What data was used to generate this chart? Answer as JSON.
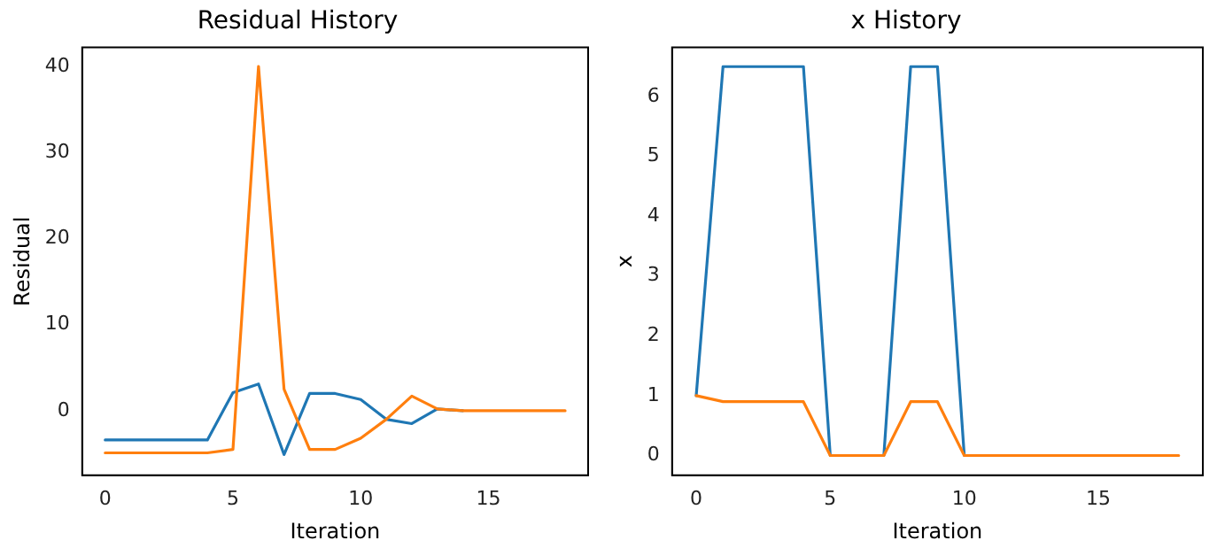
{
  "chart_data": [
    {
      "type": "line",
      "title": "Residual History",
      "xlabel": "Iteration",
      "ylabel": "Residual",
      "x": [
        0,
        1,
        2,
        3,
        4,
        5,
        6,
        7,
        8,
        9,
        10,
        11,
        12,
        13,
        14,
        15,
        16,
        17,
        18
      ],
      "xlim": [
        -0.9,
        18.9
      ],
      "xticks": [
        0,
        5,
        10,
        15
      ],
      "ylim": [
        -7.5,
        42.2
      ],
      "yticks": [
        0,
        10,
        20,
        30,
        40
      ],
      "grid": false,
      "legend": false,
      "marker": "none",
      "line_style": "solid",
      "series": [
        {
          "color": "#1f77b4",
          "values": [
            -3.4,
            -3.4,
            -3.4,
            -3.4,
            -3.4,
            2.1,
            3.1,
            -5.1,
            2,
            2,
            1.3,
            -1,
            -1.5,
            0.2,
            0,
            null,
            null,
            null,
            null
          ]
        },
        {
          "color": "#ff7f0e",
          "values": [
            -4.9,
            -4.9,
            -4.9,
            -4.9,
            -4.9,
            -4.5,
            40,
            2.5,
            -4.5,
            -4.5,
            -3.2,
            -1,
            1.7,
            0.2,
            0,
            0,
            0,
            0,
            0
          ]
        }
      ]
    },
    {
      "type": "line",
      "title": "x History",
      "xlabel": "Iteration",
      "ylabel": "x",
      "x": [
        0,
        1,
        2,
        3,
        4,
        5,
        6,
        7,
        8,
        9,
        10,
        11,
        12,
        13,
        14,
        15,
        16,
        17,
        18
      ],
      "xlim": [
        -0.9,
        18.9
      ],
      "xticks": [
        0,
        5,
        10,
        15
      ],
      "ylim": [
        -0.33,
        6.82
      ],
      "yticks": [
        0,
        1,
        2,
        3,
        4,
        5,
        6
      ],
      "grid": false,
      "legend": false,
      "marker": "none",
      "line_style": "solid",
      "series": [
        {
          "color": "#1f77b4",
          "values": [
            1,
            6.5,
            6.5,
            6.5,
            6.5,
            0,
            0,
            0,
            6.5,
            6.5,
            0,
            0,
            null,
            null,
            null,
            null,
            null,
            null,
            null
          ]
        },
        {
          "color": "#ff7f0e",
          "values": [
            1,
            0.9,
            0.9,
            0.9,
            0.9,
            0,
            0,
            0,
            0.9,
            0.9,
            0,
            0,
            0,
            0,
            0,
            0,
            0,
            0,
            0
          ]
        }
      ]
    }
  ]
}
